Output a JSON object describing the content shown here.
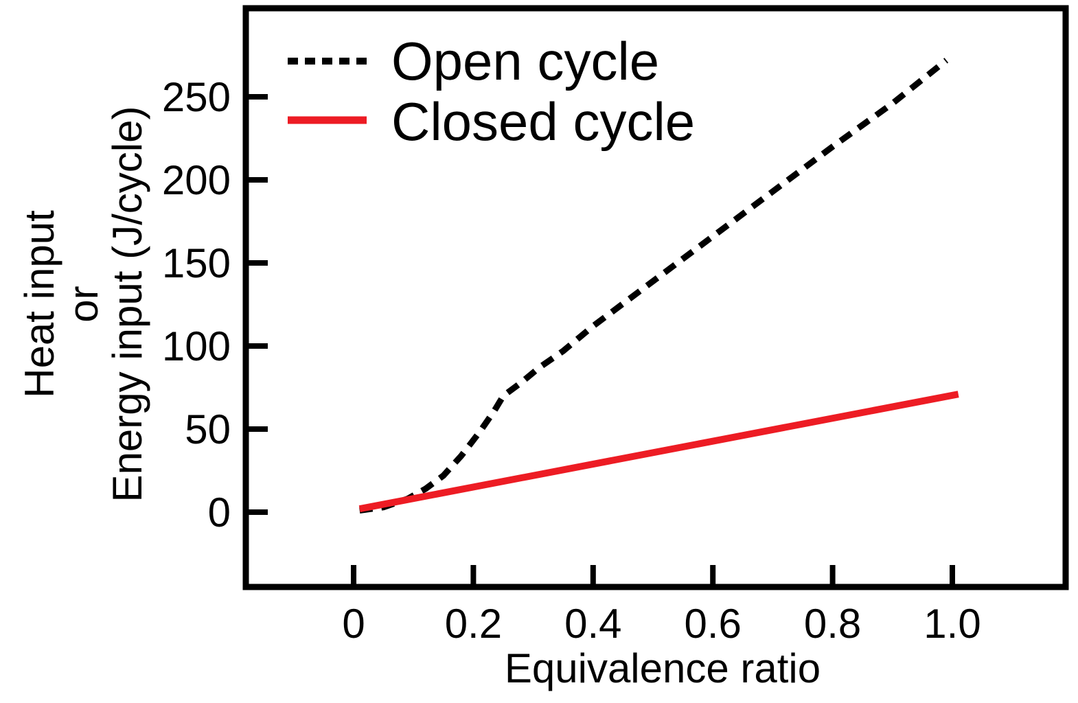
{
  "figure": {
    "background_color": "#ffffff",
    "frame_color": "#000000"
  },
  "legend": {
    "position": "upper-left",
    "items": [
      {
        "label": "Open cycle",
        "line_style": "dashed",
        "color": "#000000"
      },
      {
        "label": "Closed cycle",
        "line_style": "solid",
        "color": "#ed1c24"
      }
    ]
  },
  "axes": {
    "x_title": "Equivalence ratio",
    "y_title_lines": [
      "Heat input",
      "or",
      "Energy input (J/cycle)"
    ]
  },
  "chart_data": {
    "type": "line",
    "title": "",
    "xlabel": "Equivalence ratio",
    "ylabel": "Heat input or Energy input (J/cycle)",
    "xlim": [
      -0.18,
      1.19
    ],
    "ylim": [
      -45,
      303
    ],
    "grid": false,
    "legend_position": "upper-left",
    "x_ticks": [
      0,
      0.2,
      0.4,
      0.6,
      0.8,
      1.0
    ],
    "x_tick_labels": [
      "0",
      "0.2",
      "0.4",
      "0.6",
      "0.8",
      "1.0"
    ],
    "y_ticks": [
      0,
      50,
      100,
      150,
      200,
      250
    ],
    "y_tick_labels": [
      "0",
      "50",
      "100",
      "150",
      "200",
      "250"
    ],
    "series": [
      {
        "name": "Open cycle",
        "color": "#000000",
        "line_style": "dashed",
        "points": [
          [
            0.01,
            1
          ],
          [
            0.05,
            3
          ],
          [
            0.09,
            8
          ],
          [
            0.12,
            14
          ],
          [
            0.15,
            22
          ],
          [
            0.18,
            34
          ],
          [
            0.21,
            48
          ],
          [
            0.235,
            61
          ],
          [
            0.25,
            70
          ],
          [
            0.28,
            78
          ],
          [
            0.31,
            87
          ],
          [
            0.35,
            97
          ],
          [
            0.4,
            112
          ],
          [
            0.5,
            139
          ],
          [
            0.6,
            166
          ],
          [
            0.7,
            193
          ],
          [
            0.8,
            220
          ],
          [
            0.9,
            246
          ],
          [
            0.99,
            272
          ]
        ]
      },
      {
        "name": "Closed cycle",
        "color": "#ed1c24",
        "line_style": "solid",
        "points": [
          [
            0.01,
            2
          ],
          [
            1.01,
            71
          ]
        ]
      }
    ]
  }
}
